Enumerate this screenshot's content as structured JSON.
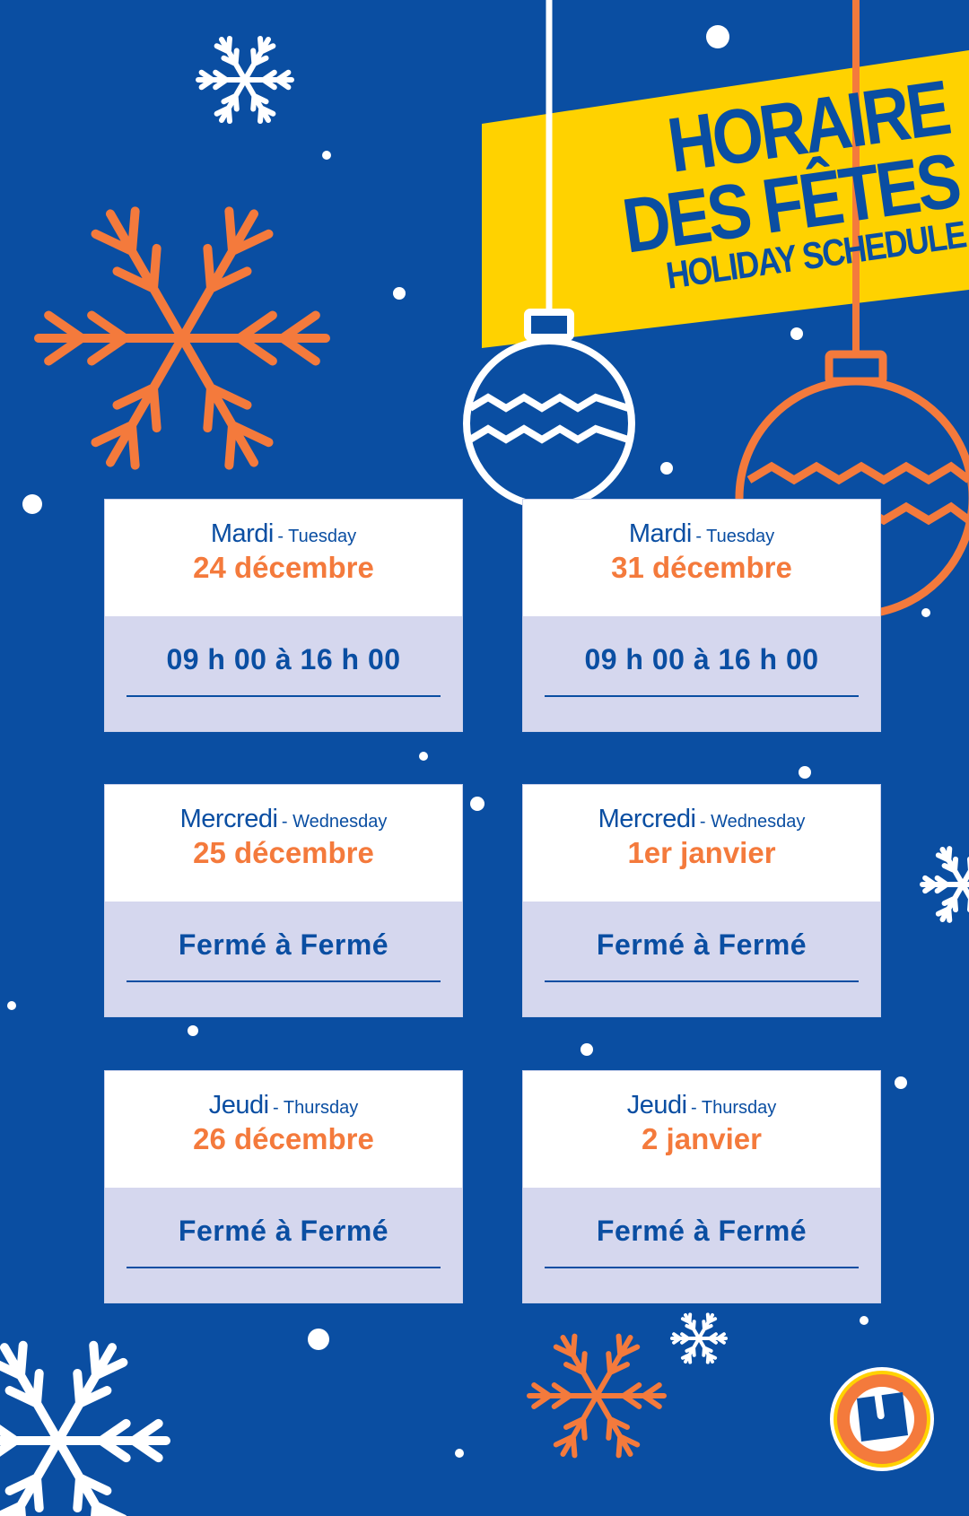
{
  "header": {
    "title_line1": "HORAIRE",
    "title_line2": "DES FÊTES",
    "subtitle": "HOLIDAY SCHEDULE"
  },
  "colors": {
    "background": "#0a4ea2",
    "accent": "#f47a3c",
    "banner": "#ffd200",
    "card_bottom": "#d5d7ee"
  },
  "logo": {
    "letter": "U"
  },
  "cards": [
    {
      "day": "Mardi",
      "day_en": "- Tuesday",
      "date": "24 décembre",
      "hours": "09 h 00 à 16 h 00"
    },
    {
      "day": "Mardi",
      "day_en": "- Tuesday",
      "date": "31 décembre",
      "hours": "09 h 00 à 16 h 00"
    },
    {
      "day": "Mercredi",
      "day_en": "- Wednesday",
      "date": "25 décembre",
      "hours": "Fermé à Fermé"
    },
    {
      "day": "Mercredi",
      "day_en": "- Wednesday",
      "date": "1er janvier",
      "hours": "Fermé à Fermé"
    },
    {
      "day": "Jeudi",
      "day_en": "- Thursday",
      "date": "26 décembre",
      "hours": "Fermé à Fermé"
    },
    {
      "day": "Jeudi",
      "day_en": "- Thursday",
      "date": "2 janvier",
      "hours": "Fermé à Fermé"
    }
  ]
}
